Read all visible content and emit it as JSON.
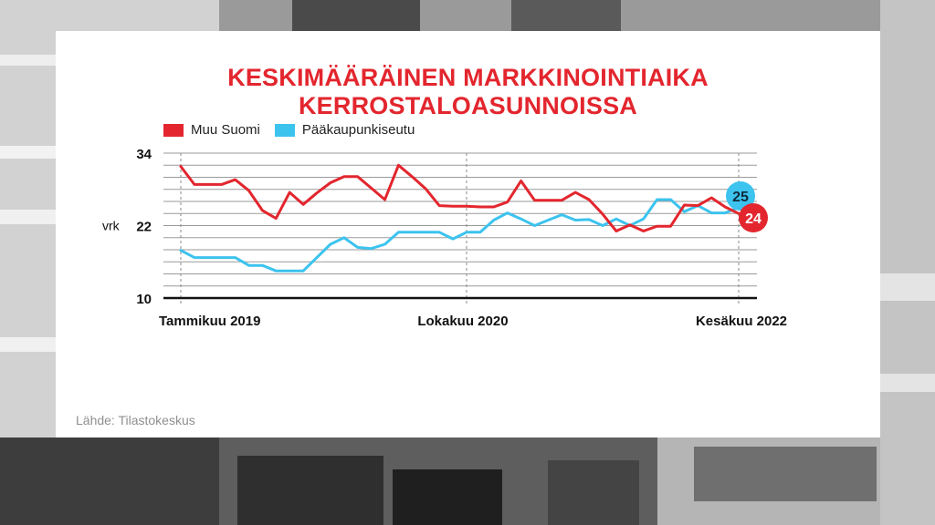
{
  "title": "KESKIMÄÄRÄINEN MARKKINOINTIAIKA KERROSTALOASUNNOISSA",
  "source": "Lähde: Tilastokeskus",
  "colors": {
    "red": "#e3262e",
    "blue": "#3cc3ee",
    "title": "#e3262e"
  },
  "chart_data": {
    "type": "line",
    "title": "KESKIMÄÄRÄINEN MARKKINOINTIAIKA KERROSTALOASUNNOISSA",
    "ylabel": "vrk",
    "ylim": [
      10,
      34
    ],
    "yticks": [
      10,
      22,
      34
    ],
    "grid": true,
    "legend_position": "top-left",
    "x_start": "Tammikuu 2019",
    "x_end": "Kesäkuu 2022",
    "x_tick_labels": [
      "Tammikuu 2019",
      "Lokakuu 2020",
      "Kesäkuu 2022"
    ],
    "series": [
      {
        "name": "Muu Suomi",
        "color": "#e3262e",
        "end_label": "24",
        "values": [
          31.8,
          28.8,
          28.8,
          28.8,
          29.6,
          27.8,
          24.5,
          23.2,
          27.5,
          25.5,
          27.4,
          29.1,
          30.1,
          30.1,
          28.2,
          26.3,
          32,
          30.1,
          28.1,
          25.3,
          25.2,
          25.2,
          25.1,
          25.1,
          25.9,
          29.4,
          26.2,
          26.2,
          26.2,
          27.5,
          26.3,
          23.9,
          21.1,
          22.1,
          21.1,
          21.9,
          21.9,
          25.4,
          25.3,
          26.6,
          25.1,
          24
        ]
      },
      {
        "name": "Pääkaupunkiseutu",
        "color": "#3cc3ee",
        "end_label": "25",
        "values": [
          17.9,
          16.7,
          16.7,
          16.7,
          16.7,
          15.4,
          15.4,
          14.5,
          14.5,
          14.5,
          16.7,
          18.9,
          20,
          18.4,
          18.2,
          18.9,
          20.9,
          20.9,
          20.9,
          20.9,
          19.8,
          20.9,
          20.9,
          22.9,
          24.1,
          23.1,
          22,
          22.9,
          23.8,
          22.9,
          23,
          22,
          23.1,
          22,
          23.1,
          26.3,
          26.3,
          24.3,
          25.3,
          24.1,
          24.1,
          25
        ]
      }
    ]
  }
}
